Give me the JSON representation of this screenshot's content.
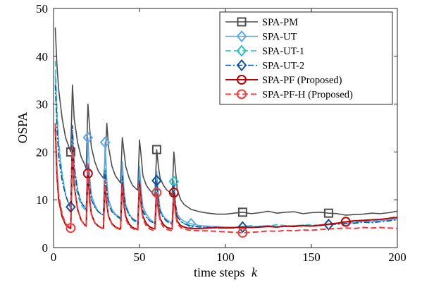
{
  "chart_data": {
    "type": "line",
    "xlabel": "time steps",
    "xlabel_var": "k",
    "ylabel": "OSPA",
    "xlim": [
      0,
      200
    ],
    "ylim": [
      0,
      50
    ],
    "xticks": [
      0,
      50,
      100,
      150,
      200
    ],
    "yticks": [
      0,
      10,
      20,
      30,
      40,
      50
    ],
    "grid": false,
    "legend_position": "top-right",
    "series": [
      {
        "name": "SPA-PM",
        "color": "#4d4d4d",
        "dash": "solid",
        "marker": "square",
        "x": [
          1,
          2,
          3,
          5,
          7,
          9,
          10,
          11,
          12,
          14,
          16,
          18,
          19,
          20,
          21,
          22,
          24,
          26,
          28,
          29,
          30,
          31,
          32,
          34,
          36,
          38,
          39,
          40,
          41,
          42,
          44,
          46,
          48,
          49,
          50,
          51,
          52,
          54,
          56,
          58,
          59,
          60,
          61,
          62,
          64,
          66,
          68,
          69,
          70,
          71,
          72,
          74,
          76,
          78,
          80,
          85,
          90,
          95,
          100,
          105,
          110,
          115,
          120,
          125,
          130,
          135,
          140,
          145,
          150,
          155,
          160,
          165,
          170,
          175,
          180,
          185,
          190,
          195,
          200
        ],
        "y": [
          46,
          38,
          33,
          27,
          23,
          21,
          20,
          34,
          27,
          22,
          19,
          17.5,
          16.5,
          30,
          25,
          21,
          18,
          16,
          15,
          14.5,
          18,
          26,
          21,
          17,
          15,
          14,
          13.5,
          23,
          20,
          17,
          14.5,
          13,
          12.3,
          12,
          22.5,
          19,
          15,
          13,
          12,
          11.2,
          11,
          20.5,
          17,
          14.5,
          13,
          12,
          11.5,
          11,
          20,
          16,
          12,
          10,
          9,
          8.5,
          8,
          7.5,
          7.2,
          7,
          7,
          7.2,
          7.4,
          7.1,
          7.3,
          7.6,
          7.2,
          7.4,
          7.5,
          7.1,
          7.3,
          7.4,
          7.2,
          7.1,
          6.8,
          6.9,
          7,
          7.2,
          7.1,
          7.3,
          7.6
        ],
        "markers_x": [
          10,
          60,
          110,
          160
        ]
      },
      {
        "name": "SPA-UT",
        "color": "#5aa9ee",
        "dash": "solid",
        "marker": "diamond",
        "x": [
          1,
          2,
          3,
          5,
          7,
          9,
          10,
          11,
          12,
          14,
          16,
          18,
          19,
          20,
          21,
          22,
          24,
          26,
          28,
          29,
          30,
          31,
          32,
          34,
          36,
          38,
          39,
          40,
          41,
          42,
          44,
          46,
          48,
          49,
          50,
          51,
          52,
          54,
          56,
          58,
          59,
          60,
          61,
          62,
          64,
          66,
          68,
          69,
          70,
          71,
          72,
          74,
          76,
          78,
          80,
          85,
          90,
          95,
          100,
          105,
          110,
          115,
          120,
          125,
          130,
          135,
          140,
          145,
          150,
          155,
          160,
          165,
          170,
          175,
          180,
          185,
          190,
          195,
          200
        ],
        "y": [
          36,
          27,
          21,
          15,
          11,
          9,
          8.5,
          24,
          17,
          12,
          9.5,
          8.5,
          8,
          23,
          15,
          11,
          9,
          7.5,
          7,
          6.8,
          22,
          14,
          10,
          8,
          7,
          6.5,
          6.3,
          18,
          12,
          9,
          7,
          6,
          5.6,
          5.5,
          17,
          12,
          8.5,
          7,
          6,
          5.4,
          5.2,
          16,
          11,
          8,
          6.5,
          5.8,
          5.3,
          5.2,
          14,
          9,
          7,
          6,
          5.5,
          5.2,
          5,
          4.6,
          4.5,
          4.4,
          4.3,
          4.2,
          4.4,
          4.3,
          4.5,
          4.6,
          4.4,
          4.5,
          4.6,
          4.7,
          4.5,
          4.6,
          4.8,
          5,
          5.1,
          5.2,
          5.5,
          5.4,
          5.6,
          5.8,
          6
        ],
        "markers_x": [
          20,
          30,
          80
        ]
      },
      {
        "name": "SPA-UT-1",
        "color": "#26c4c4",
        "dash": "dashed",
        "marker": "diamond",
        "x": [
          1,
          2,
          3,
          5,
          7,
          9,
          10,
          11,
          12,
          14,
          16,
          18,
          19,
          20,
          21,
          22,
          24,
          26,
          28,
          29,
          30,
          31,
          32,
          34,
          36,
          38,
          39,
          40,
          41,
          42,
          44,
          46,
          48,
          49,
          50,
          51,
          52,
          54,
          56,
          58,
          59,
          60,
          61,
          62,
          64,
          66,
          68,
          69,
          70,
          71,
          72,
          74,
          76,
          78,
          80,
          85,
          90,
          95,
          100,
          105,
          110,
          115,
          120,
          125,
          130,
          135,
          140,
          145,
          150,
          155,
          160,
          165,
          170,
          175,
          180,
          185,
          190,
          195,
          200
        ],
        "y": [
          39,
          29,
          22,
          15.5,
          11,
          9,
          8,
          21,
          15,
          11,
          9,
          8,
          7.5,
          17,
          13,
          10,
          8.5,
          7.5,
          7,
          6.8,
          16.5,
          12,
          9,
          7.5,
          6.8,
          6.2,
          6,
          15,
          11,
          8.5,
          6.8,
          5.8,
          5.3,
          5.2,
          14.5,
          10.5,
          8,
          6.5,
          5.6,
          5.1,
          5,
          14,
          10,
          7.5,
          6.2,
          5.4,
          5,
          4.8,
          13.8,
          9,
          6.5,
          5.5,
          5,
          4.8,
          4.6,
          4.4,
          4.3,
          4.3,
          4.2,
          4.2,
          4.4,
          4.6,
          4.3,
          4.5,
          4.8,
          4.6,
          4.5,
          4.7,
          4.8,
          4.6,
          4.9,
          5,
          5.3,
          5.4,
          5.6,
          5.5,
          5.8,
          6.2,
          6.5
        ],
        "markers_x": [
          70
        ]
      },
      {
        "name": "SPA-UT-2",
        "color": "#0f4fa0",
        "dash": "dashdot",
        "marker": "diamond",
        "x": [
          1,
          2,
          3,
          5,
          7,
          9,
          10,
          11,
          12,
          14,
          16,
          18,
          19,
          20,
          21,
          22,
          24,
          26,
          28,
          29,
          30,
          31,
          32,
          34,
          36,
          38,
          39,
          40,
          41,
          42,
          44,
          46,
          48,
          49,
          50,
          51,
          52,
          54,
          56,
          58,
          59,
          60,
          61,
          62,
          64,
          66,
          68,
          69,
          70,
          71,
          72,
          74,
          76,
          78,
          80,
          85,
          90,
          95,
          100,
          105,
          110,
          115,
          120,
          125,
          130,
          135,
          140,
          145,
          150,
          155,
          160,
          165,
          170,
          175,
          180,
          185,
          190,
          195,
          200
        ],
        "y": [
          34,
          25,
          19,
          14,
          11,
          9,
          8.5,
          25.5,
          17,
          12,
          9.5,
          8.5,
          8,
          17.5,
          13,
          10,
          8.5,
          7.5,
          7,
          6.8,
          16,
          12,
          9,
          7.5,
          6.8,
          6.3,
          6.1,
          15,
          11,
          8.5,
          6.8,
          6,
          5.5,
          5.3,
          14,
          10,
          7.5,
          6.3,
          5.6,
          5.2,
          5,
          14,
          10,
          7.5,
          6.2,
          5.5,
          5.1,
          4.9,
          13,
          9,
          6.5,
          5.5,
          5,
          4.7,
          4.5,
          4.3,
          4.2,
          4.1,
          4.1,
          4.1,
          4.3,
          4.2,
          4.4,
          4.5,
          4.3,
          4.4,
          4.5,
          4.6,
          4.5,
          4.6,
          4.8,
          4.9,
          5,
          5.1,
          5.3,
          5.2,
          5.4,
          5.6,
          5.8
        ],
        "markers_x": [
          10,
          60,
          110,
          160
        ]
      },
      {
        "name": "SPA-PF (Proposed)",
        "color": "#c00000",
        "dash": "solid",
        "marker": "circle",
        "x": [
          1,
          2,
          3,
          5,
          7,
          9,
          10,
          11,
          12,
          14,
          16,
          18,
          19,
          20,
          21,
          22,
          24,
          26,
          28,
          29,
          30,
          31,
          32,
          34,
          36,
          38,
          39,
          40,
          41,
          42,
          44,
          46,
          48,
          49,
          50,
          51,
          52,
          54,
          56,
          58,
          59,
          60,
          61,
          62,
          64,
          66,
          68,
          69,
          70,
          71,
          72,
          74,
          76,
          78,
          80,
          85,
          90,
          95,
          100,
          105,
          110,
          115,
          120,
          125,
          130,
          135,
          140,
          145,
          150,
          155,
          160,
          165,
          170,
          175,
          180,
          185,
          190,
          195,
          200
        ],
        "y": [
          25,
          15,
          10,
          6.5,
          4.8,
          4.2,
          4,
          21,
          13,
          8,
          5.8,
          4.8,
          4.5,
          15.5,
          10,
          7,
          5.2,
          4.5,
          4.1,
          4,
          13,
          9,
          6.5,
          5,
          4.3,
          4,
          3.9,
          13.5,
          9,
          6.5,
          4.9,
          4.2,
          3.9,
          3.8,
          13.5,
          9,
          6.5,
          5,
          4.3,
          4,
          3.9,
          11.5,
          8,
          6,
          4.8,
          4.2,
          4,
          3.9,
          11.5,
          7.5,
          5.5,
          4.6,
          4.3,
          4.1,
          4,
          4,
          4.1,
          4.2,
          4.1,
          4.2,
          4.3,
          4.2,
          4.3,
          4.4,
          4.3,
          4.5,
          4.4,
          4.6,
          4.5,
          4.7,
          4.9,
          5.1,
          5.4,
          5.6,
          5.7,
          5.8,
          5.9,
          6.1,
          6.3
        ],
        "markers_x": [
          20,
          70,
          170
        ]
      },
      {
        "name": "SPA-PF-H (Proposed)",
        "color": "#f03c3c",
        "dash": "dashed",
        "marker": "circle",
        "x": [
          1,
          2,
          3,
          5,
          7,
          9,
          10,
          11,
          12,
          14,
          16,
          18,
          19,
          20,
          21,
          22,
          24,
          26,
          28,
          29,
          30,
          31,
          32,
          34,
          36,
          38,
          39,
          40,
          41,
          42,
          44,
          46,
          48,
          49,
          50,
          51,
          52,
          54,
          56,
          58,
          59,
          60,
          61,
          62,
          64,
          66,
          68,
          69,
          70,
          71,
          72,
          74,
          76,
          78,
          80,
          85,
          90,
          95,
          100,
          105,
          110,
          115,
          120,
          125,
          130,
          135,
          140,
          145,
          150,
          155,
          160,
          165,
          170,
          175,
          180,
          185,
          190,
          195,
          200
        ],
        "y": [
          26,
          16,
          11,
          7,
          5,
          4.4,
          4.1,
          21,
          13,
          8,
          5.8,
          4.8,
          4.5,
          17.5,
          10.5,
          7,
          5.2,
          4.5,
          4.1,
          4,
          14,
          9,
          6.5,
          4.9,
          4.2,
          3.9,
          3.8,
          13,
          8.5,
          6,
          4.5,
          4,
          3.7,
          3.6,
          12.5,
          8.5,
          6,
          4.5,
          3.9,
          3.6,
          3.5,
          11.5,
          7.5,
          5.5,
          4.3,
          3.8,
          3.6,
          3.5,
          10.5,
          7,
          5,
          4.2,
          3.9,
          3.7,
          3.6,
          3.5,
          3.5,
          3.4,
          3.3,
          3.2,
          3.1,
          3.2,
          3.3,
          3.5,
          3.4,
          3.6,
          3.5,
          3.7,
          3.6,
          3.8,
          3.9,
          4,
          4.1,
          4,
          4.2,
          4.1,
          4.2,
          4.1,
          4
        ],
        "markers_x": [
          10,
          60,
          110
        ]
      }
    ]
  }
}
